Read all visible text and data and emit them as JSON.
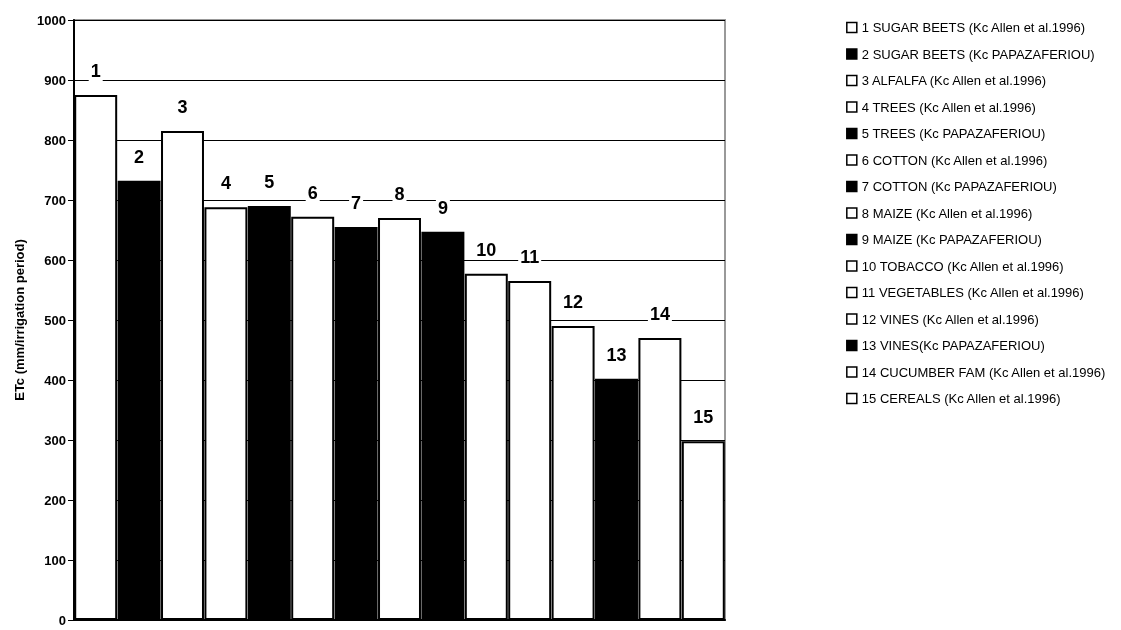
{
  "chart_data": {
    "type": "bar",
    "ylabel": "ETc (mm/irrigation period)",
    "categories": [
      "1",
      "2",
      "3",
      "4",
      "5",
      "6",
      "7",
      "8",
      "9",
      "10",
      "11",
      "12",
      "13",
      "14",
      "15"
    ],
    "stacked": true,
    "ylim": [
      0,
      1000
    ],
    "yticks": [
      0,
      100,
      200,
      300,
      400,
      500,
      600,
      700,
      800,
      900,
      1000
    ],
    "grid": "y",
    "legend": "right",
    "tick_labels": "y",
    "series": [
      {
        "name": "1 SUGAR BEETS (Kc Allen et al.1996)",
        "color": "#ffffff",
        "values": [
          875,
          null,
          null,
          null,
          null,
          null,
          null,
          null,
          null,
          null,
          null,
          null,
          null,
          null,
          null
        ]
      },
      {
        "name": "2 SUGAR BEETS (Kc PAPAZAFERIOU)",
        "color": "#000000",
        "values": [
          null,
          732,
          null,
          null,
          null,
          null,
          null,
          null,
          null,
          null,
          null,
          null,
          null,
          null,
          null
        ]
      },
      {
        "name": "3 ALFALFA (Kc Allen et al.1996)",
        "color": "#ffffff",
        "values": [
          null,
          null,
          815,
          null,
          null,
          null,
          null,
          null,
          null,
          null,
          null,
          null,
          null,
          null,
          null
        ]
      },
      {
        "name": "4 TREES (Kc Allen et al.1996)",
        "color": "#ffffff",
        "values": [
          null,
          null,
          null,
          688,
          null,
          null,
          null,
          null,
          null,
          null,
          null,
          null,
          null,
          null,
          null
        ]
      },
      {
        "name": "5 TREES (Kc PAPAZAFERIOU)",
        "color": "#000000",
        "values": [
          null,
          null,
          null,
          null,
          690,
          null,
          null,
          null,
          null,
          null,
          null,
          null,
          null,
          null,
          null
        ]
      },
      {
        "name": "6 COTTON (Kc Allen et al.1996)",
        "color": "#ffffff",
        "values": [
          null,
          null,
          null,
          null,
          null,
          672,
          null,
          null,
          null,
          null,
          null,
          null,
          null,
          null,
          null
        ]
      },
      {
        "name": "7 COTTON (Kc PAPAZAFERIOU)",
        "color": "#000000",
        "values": [
          null,
          null,
          null,
          null,
          null,
          null,
          655,
          null,
          null,
          null,
          null,
          null,
          null,
          null,
          null
        ]
      },
      {
        "name": "8 MAIZE (Kc Allen et al.1996)",
        "color": "#ffffff",
        "values": [
          null,
          null,
          null,
          null,
          null,
          null,
          null,
          670,
          null,
          null,
          null,
          null,
          null,
          null,
          null
        ]
      },
      {
        "name": "9 MAIZE (Kc PAPAZAFERIOU)",
        "color": "#000000",
        "values": [
          null,
          null,
          null,
          null,
          null,
          null,
          null,
          null,
          647,
          null,
          null,
          null,
          null,
          null,
          null
        ]
      },
      {
        "name": "10 TOBACCO (Kc Allen et al.1996)",
        "color": "#ffffff",
        "values": [
          null,
          null,
          null,
          null,
          null,
          null,
          null,
          null,
          null,
          577,
          null,
          null,
          null,
          null,
          null
        ]
      },
      {
        "name": "11 VEGETABLES (Kc Allen et al.1996)",
        "color": "#ffffff",
        "values": [
          null,
          null,
          null,
          null,
          null,
          null,
          null,
          null,
          null,
          null,
          565,
          null,
          null,
          null,
          null
        ]
      },
      {
        "name": "12 VINES (Kc Allen et al.1996)",
        "color": "#ffffff",
        "values": [
          null,
          null,
          null,
          null,
          null,
          null,
          null,
          null,
          null,
          null,
          null,
          490,
          null,
          null,
          null
        ]
      },
      {
        "name": "13 VINES(Kc PAPAZAFERIOU)",
        "color": "#000000",
        "values": [
          null,
          null,
          null,
          null,
          null,
          null,
          null,
          null,
          null,
          null,
          null,
          null,
          402,
          null,
          null
        ]
      },
      {
        "name": "14 CUCUMBER FAM (Kc Allen et al.1996)",
        "color": "#ffffff",
        "values": [
          null,
          null,
          null,
          null,
          null,
          null,
          null,
          null,
          null,
          null,
          null,
          null,
          null,
          470,
          null
        ]
      },
      {
        "name": "15 CEREALS (Kc Allen et al.1996)",
        "color": "#ffffff",
        "values": [
          null,
          null,
          null,
          null,
          null,
          null,
          null,
          null,
          null,
          null,
          null,
          null,
          null,
          null,
          298
        ]
      }
    ]
  }
}
